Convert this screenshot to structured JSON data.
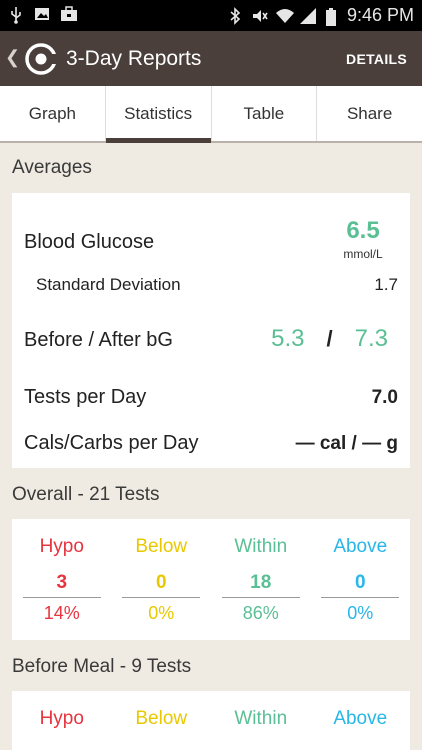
{
  "status_bar": {
    "time": "9:46 PM",
    "left_icons": [
      "usb-icon",
      "image-icon",
      "briefcase-icon"
    ],
    "right_icons": [
      "bluetooth-icon",
      "mute-icon",
      "wifi-icon",
      "signal-icon",
      "battery-icon"
    ]
  },
  "app_bar": {
    "title": "3-Day Reports",
    "action_label": "DETAILS"
  },
  "tabs": [
    {
      "label": "Graph",
      "active": false
    },
    {
      "label": "Statistics",
      "active": true
    },
    {
      "label": "Table",
      "active": false
    },
    {
      "label": "Share",
      "active": false
    }
  ],
  "averages": {
    "section_title": "Averages",
    "blood_glucose_label": "Blood Glucose",
    "blood_glucose_value": "6.5",
    "blood_glucose_unit": "mmol/L",
    "std_dev_label": "Standard Deviation",
    "std_dev_value": "1.7",
    "before_after_label": "Before / After bG",
    "before_value": "5.3",
    "after_value": "7.3",
    "slash": "/",
    "tests_per_day_label": "Tests per Day",
    "tests_per_day_value": "7.0",
    "cals_carbs_label": "Cals/Carbs per Day",
    "cals_carbs_value": "— cal / — g"
  },
  "overall": {
    "section_title": "Overall - 21 Tests",
    "columns": [
      {
        "label": "Hypo",
        "count": "3",
        "percent": "14%"
      },
      {
        "label": "Below",
        "count": "0",
        "percent": "0%"
      },
      {
        "label": "Within",
        "count": "18",
        "percent": "86%"
      },
      {
        "label": "Above",
        "count": "0",
        "percent": "0%"
      }
    ]
  },
  "before_meal": {
    "section_title": "Before Meal - 9 Tests",
    "columns": [
      {
        "label": "Hypo"
      },
      {
        "label": "Below"
      },
      {
        "label": "Within"
      },
      {
        "label": "Above"
      }
    ]
  },
  "colors": {
    "hypo": "#e8343f",
    "below": "#e8c900",
    "within": "#5bbf95",
    "above": "#29b6e8",
    "app_bar": "#4a3f3b",
    "background": "#efebe2"
  }
}
